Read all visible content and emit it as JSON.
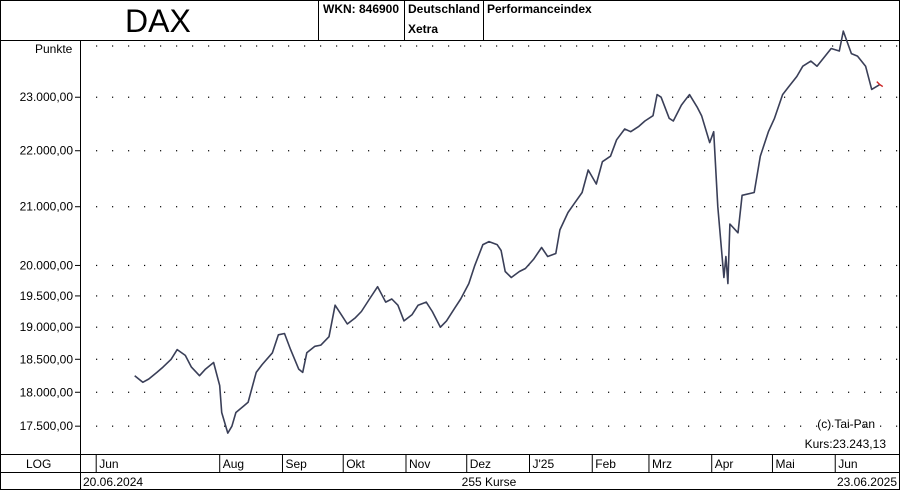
{
  "header": {
    "title": "DAX",
    "wkn": "WKN: 846900",
    "country": "Deutschland",
    "exchange": "Xetra",
    "index_type": "Performanceindex"
  },
  "footer": {
    "scale_mode": "LOG",
    "start_date": "20.06.2024",
    "count": "255 Kurse",
    "end_date": "23.06.2025"
  },
  "annotations": {
    "copyright": "(c) Tai-Pan",
    "last_price": "Kurs:23.243,13"
  },
  "colors": {
    "line": "#3a3f58",
    "last_marker": "#cc2222",
    "grid_dots": "#000000"
  },
  "chart_data": {
    "type": "line",
    "title": "DAX",
    "ylabel": "Punkte",
    "xlabel": "",
    "yscale": "log",
    "ylim": [
      17100,
      24100
    ],
    "yticks": [
      {
        "value": 17500,
        "label": "17.500,00"
      },
      {
        "value": 18000,
        "label": "18.000,00"
      },
      {
        "value": 18500,
        "label": "18.500,00"
      },
      {
        "value": 19000,
        "label": "19.000,00"
      },
      {
        "value": 19500,
        "label": "19.500,00"
      },
      {
        "value": 20000,
        "label": "20.000,00"
      },
      {
        "value": 21000,
        "label": "21.000,00"
      },
      {
        "value": 22000,
        "label": "22.000,00"
      },
      {
        "value": 23000,
        "label": "23.000,00"
      }
    ],
    "months": [
      {
        "label": "Jun",
        "date": "2024-06-01"
      },
      {
        "label": "Aug",
        "date": "2024-08-01"
      },
      {
        "label": "Sep",
        "date": "2024-09-01"
      },
      {
        "label": "Okt",
        "date": "2024-10-01"
      },
      {
        "label": "Nov",
        "date": "2024-11-01"
      },
      {
        "label": "Dez",
        "date": "2024-12-01"
      },
      {
        "label": "J'25",
        "date": "2025-01-01"
      },
      {
        "label": "Feb",
        "date": "2025-02-01"
      },
      {
        "label": "Mrz",
        "date": "2025-03-01"
      },
      {
        "label": "Apr",
        "date": "2025-04-01"
      },
      {
        "label": "Mai",
        "date": "2025-05-01"
      },
      {
        "label": "Jun",
        "date": "2025-06-01"
      }
    ],
    "series": [
      {
        "points": [
          [
            "2024-06-20",
            18250
          ],
          [
            "2024-06-24",
            18150
          ],
          [
            "2024-06-27",
            18200
          ],
          [
            "2024-07-01",
            18300
          ],
          [
            "2024-07-04",
            18380
          ],
          [
            "2024-07-08",
            18500
          ],
          [
            "2024-07-11",
            18650
          ],
          [
            "2024-07-15",
            18560
          ],
          [
            "2024-07-18",
            18380
          ],
          [
            "2024-07-22",
            18250
          ],
          [
            "2024-07-25",
            18350
          ],
          [
            "2024-07-29",
            18450
          ],
          [
            "2024-08-01",
            18100
          ],
          [
            "2024-08-02",
            17700
          ],
          [
            "2024-08-05",
            17400
          ],
          [
            "2024-08-07",
            17500
          ],
          [
            "2024-08-09",
            17700
          ],
          [
            "2024-08-13",
            17800
          ],
          [
            "2024-08-15",
            17850
          ],
          [
            "2024-08-19",
            18300
          ],
          [
            "2024-08-22",
            18420
          ],
          [
            "2024-08-27",
            18600
          ],
          [
            "2024-08-30",
            18880
          ],
          [
            "2024-09-02",
            18900
          ],
          [
            "2024-09-05",
            18650
          ],
          [
            "2024-09-09",
            18350
          ],
          [
            "2024-09-11",
            18300
          ],
          [
            "2024-09-13",
            18600
          ],
          [
            "2024-09-17",
            18700
          ],
          [
            "2024-09-20",
            18720
          ],
          [
            "2024-09-24",
            18850
          ],
          [
            "2024-09-27",
            19350
          ],
          [
            "2024-09-30",
            19200
          ],
          [
            "2024-10-03",
            19050
          ],
          [
            "2024-10-07",
            19150
          ],
          [
            "2024-10-10",
            19250
          ],
          [
            "2024-10-14",
            19450
          ],
          [
            "2024-10-18",
            19650
          ],
          [
            "2024-10-22",
            19400
          ],
          [
            "2024-10-25",
            19450
          ],
          [
            "2024-10-28",
            19350
          ],
          [
            "2024-10-31",
            19100
          ],
          [
            "2024-11-04",
            19200
          ],
          [
            "2024-11-07",
            19350
          ],
          [
            "2024-11-11",
            19400
          ],
          [
            "2024-11-14",
            19250
          ],
          [
            "2024-11-18",
            19000
          ],
          [
            "2024-11-21",
            19100
          ],
          [
            "2024-11-25",
            19300
          ],
          [
            "2024-11-28",
            19450
          ],
          [
            "2024-12-02",
            19700
          ],
          [
            "2024-12-05",
            20000
          ],
          [
            "2024-12-09",
            20350
          ],
          [
            "2024-12-12",
            20400
          ],
          [
            "2024-12-16",
            20350
          ],
          [
            "2024-12-18",
            20250
          ],
          [
            "2024-12-20",
            19900
          ],
          [
            "2024-12-23",
            19800
          ],
          [
            "2024-12-27",
            19900
          ],
          [
            "2024-12-30",
            19950
          ],
          [
            "2025-01-03",
            20100
          ],
          [
            "2025-01-07",
            20300
          ],
          [
            "2025-01-10",
            20150
          ],
          [
            "2025-01-14",
            20200
          ],
          [
            "2025-01-16",
            20600
          ],
          [
            "2025-01-20",
            20900
          ],
          [
            "2025-01-23",
            21050
          ],
          [
            "2025-01-27",
            21250
          ],
          [
            "2025-01-30",
            21650
          ],
          [
            "2025-02-03",
            21400
          ],
          [
            "2025-02-06",
            21800
          ],
          [
            "2025-02-10",
            21900
          ],
          [
            "2025-02-13",
            22200
          ],
          [
            "2025-02-17",
            22400
          ],
          [
            "2025-02-20",
            22350
          ],
          [
            "2025-02-24",
            22450
          ],
          [
            "2025-02-27",
            22550
          ],
          [
            "2025-03-03",
            22650
          ],
          [
            "2025-03-05",
            23050
          ],
          [
            "2025-03-07",
            23000
          ],
          [
            "2025-03-11",
            22600
          ],
          [
            "2025-03-13",
            22550
          ],
          [
            "2025-03-17",
            22850
          ],
          [
            "2025-03-19",
            22950
          ],
          [
            "2025-03-21",
            23050
          ],
          [
            "2025-03-25",
            22800
          ],
          [
            "2025-03-27",
            22650
          ],
          [
            "2025-03-31",
            22150
          ],
          [
            "2025-04-02",
            22350
          ],
          [
            "2025-04-04",
            21000
          ],
          [
            "2025-04-07",
            19800
          ],
          [
            "2025-04-08",
            20150
          ],
          [
            "2025-04-09",
            19700
          ],
          [
            "2025-04-10",
            20700
          ],
          [
            "2025-04-14",
            20550
          ],
          [
            "2025-04-16",
            21200
          ],
          [
            "2025-04-22",
            21250
          ],
          [
            "2025-04-25",
            21900
          ],
          [
            "2025-04-29",
            22350
          ],
          [
            "2025-05-02",
            22600
          ],
          [
            "2025-05-06",
            23050
          ],
          [
            "2025-05-09",
            23200
          ],
          [
            "2025-05-13",
            23400
          ],
          [
            "2025-05-16",
            23600
          ],
          [
            "2025-05-20",
            23700
          ],
          [
            "2025-05-23",
            23600
          ],
          [
            "2025-05-27",
            23800
          ],
          [
            "2025-05-30",
            23950
          ],
          [
            "2025-06-03",
            23900
          ],
          [
            "2025-06-05",
            24300
          ],
          [
            "2025-06-09",
            23850
          ],
          [
            "2025-06-12",
            23800
          ],
          [
            "2025-06-16",
            23600
          ],
          [
            "2025-06-19",
            23150
          ],
          [
            "2025-06-23",
            23243
          ]
        ]
      }
    ],
    "last_value": 23243.13
  }
}
